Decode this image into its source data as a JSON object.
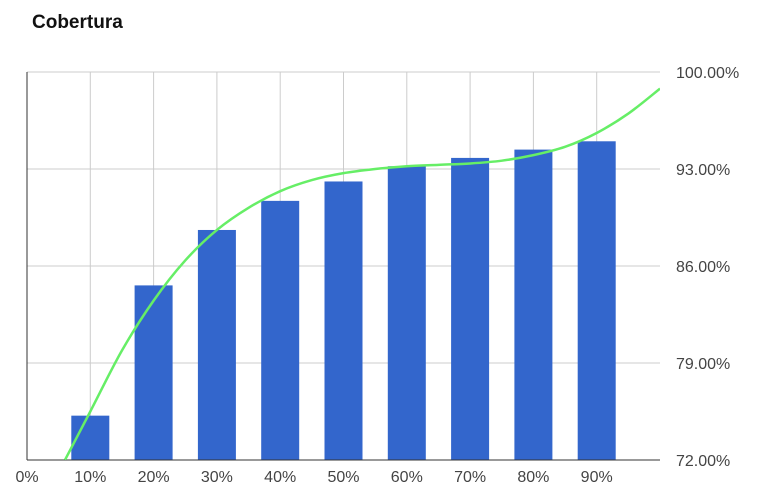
{
  "chart_data": {
    "type": "bar",
    "title": "Cobertura",
    "categories": [
      "10%",
      "20%",
      "30%",
      "40%",
      "50%",
      "60%",
      "70%",
      "80%",
      "90%"
    ],
    "x_tick_labels": [
      "0%",
      "10%",
      "20%",
      "30%",
      "40%",
      "50%",
      "60%",
      "70%",
      "80%",
      "90%"
    ],
    "x_values": [
      10,
      20,
      30,
      40,
      50,
      60,
      70,
      80,
      90
    ],
    "xlim": [
      0,
      100
    ],
    "series": [
      {
        "type": "bar",
        "values": [
          75.2,
          84.6,
          88.6,
          90.7,
          92.1,
          93.2,
          93.8,
          94.4,
          95.0
        ]
      }
    ],
    "trendline": {
      "type": "line",
      "x": [
        6,
        10,
        15,
        20,
        25,
        30,
        35,
        40,
        45,
        50,
        55,
        60,
        65,
        70,
        75,
        80,
        85,
        90,
        95,
        100
      ],
      "y": [
        72.0,
        75.5,
        79.9,
        83.5,
        86.4,
        88.6,
        90.2,
        91.4,
        92.2,
        92.7,
        93.0,
        93.2,
        93.3,
        93.4,
        93.6,
        94.0,
        94.6,
        95.6,
        97.0,
        98.8
      ]
    },
    "y_axis_position": "right",
    "ylim": [
      72,
      100
    ],
    "y_tick_labels": [
      "72.00%",
      "79.00%",
      "86.00%",
      "93.00%",
      "100.00%"
    ],
    "y_tick_values": [
      72,
      79,
      86,
      93,
      100
    ],
    "grid": true,
    "legend": "none",
    "colors": {
      "bar": "#3366cc",
      "trendline": "#66ee66",
      "grid": "#cccccc",
      "axis": "#333333"
    }
  }
}
